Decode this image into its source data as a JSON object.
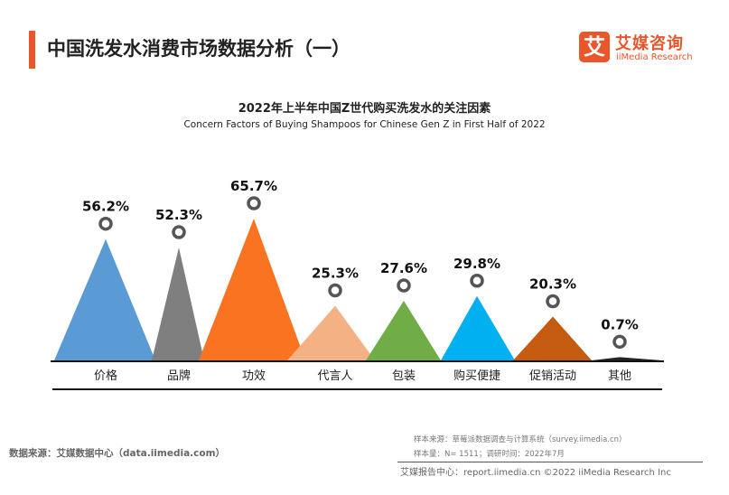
{
  "header": {
    "title": "中国洗发水消费市场数据分析（一）",
    "logo_mark": "艾",
    "logo_cn": "艾媒咨询",
    "logo_en": "iiMedia Research"
  },
  "chart_data": {
    "type": "bar",
    "title": "2022年上半年中国Z世代购买洗发水的关注因素",
    "subtitle": "Concern Factors of Buying Shampoos for Chinese Gen Z in First Half of 2022",
    "categories": [
      "价格",
      "品牌",
      "功效",
      "代言人",
      "包装",
      "购买便捷",
      "促销活动",
      "其他"
    ],
    "values": [
      56.2,
      52.3,
      65.7,
      25.3,
      27.6,
      29.8,
      20.3,
      0.7
    ],
    "labels": [
      "56.2%",
      "52.3%",
      "65.7%",
      "25.3%",
      "27.6%",
      "29.8%",
      "20.3%",
      "0.7%"
    ],
    "colors": [
      "#5b9bd5",
      "#7f7f7f",
      "#fa7320",
      "#f4b183",
      "#70ad47",
      "#00b0f0",
      "#c55a11",
      "#222222"
    ],
    "unit": "%",
    "ylim": [
      0,
      70
    ],
    "grid": false,
    "legend": "none"
  },
  "footer": {
    "source_left": "数据来源：艾媒数据中心（data.iimedia.com）",
    "sample_source": "样本来源：草莓派数据调查与计算系统（survey.iimedia.cn）",
    "sample_size": "样本量：N= 1511；调研时间：2022年7月",
    "report": "艾媒报告中心：report.iimedia.cn    ©2022  iiMedia Research  Inc"
  }
}
